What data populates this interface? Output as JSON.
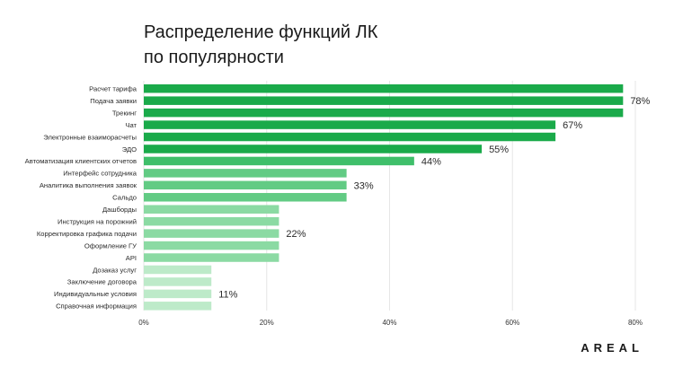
{
  "title_line1": "Распределение функций ЛК",
  "title_line2": "по популярности",
  "logo_text": "AREAL",
  "chart_data": {
    "type": "bar",
    "orientation": "horizontal",
    "title": "Распределение функций ЛК по популярности",
    "xlim": [
      0,
      80
    ],
    "x_ticks": [
      "0%",
      "20%",
      "40%",
      "60%",
      "80%"
    ],
    "x_tick_values": [
      0,
      20,
      40,
      60,
      80
    ],
    "grid": true,
    "categories": [
      "Расчет тарифа",
      "Подача заявки",
      "Трекинг",
      "Чат",
      "Электронные взаиморасчеты",
      "ЭДО",
      "Автоматизация клиентских отчетов",
      "Интерфейс сотрудника",
      "Аналитика выполнения заявок",
      "Сальдо",
      "Дашборды",
      "Инструкция на порожний",
      "Корректировка графика подачи",
      "Оформление ГУ",
      "API",
      "Дозаказ услуг",
      "Заключение договора",
      "Индивидуальные условия",
      "Справочная информация"
    ],
    "values": [
      78,
      78,
      78,
      67,
      67,
      55,
      44,
      33,
      33,
      33,
      22,
      22,
      22,
      22,
      22,
      11,
      11,
      11,
      11
    ],
    "colors": [
      "#1aaa4a",
      "#1aaa4a",
      "#1aaa4a",
      "#1aaa4a",
      "#1aaa4a",
      "#1aaa4a",
      "#3fbf6a",
      "#62cb84",
      "#62cb84",
      "#62cb84",
      "#8bdaa3",
      "#8bdaa3",
      "#8bdaa3",
      "#8bdaa3",
      "#8bdaa3",
      "#bdeac9",
      "#bdeac9",
      "#bdeac9",
      "#bdeac9"
    ],
    "value_labels": [
      {
        "index": 1,
        "text": "78%"
      },
      {
        "index": 3,
        "text": "67%"
      },
      {
        "index": 5,
        "text": "55%"
      },
      {
        "index": 6,
        "text": "44%"
      },
      {
        "index": 8,
        "text": "33%"
      },
      {
        "index": 12,
        "text": "22%"
      },
      {
        "index": 17,
        "text": "11%"
      }
    ]
  }
}
